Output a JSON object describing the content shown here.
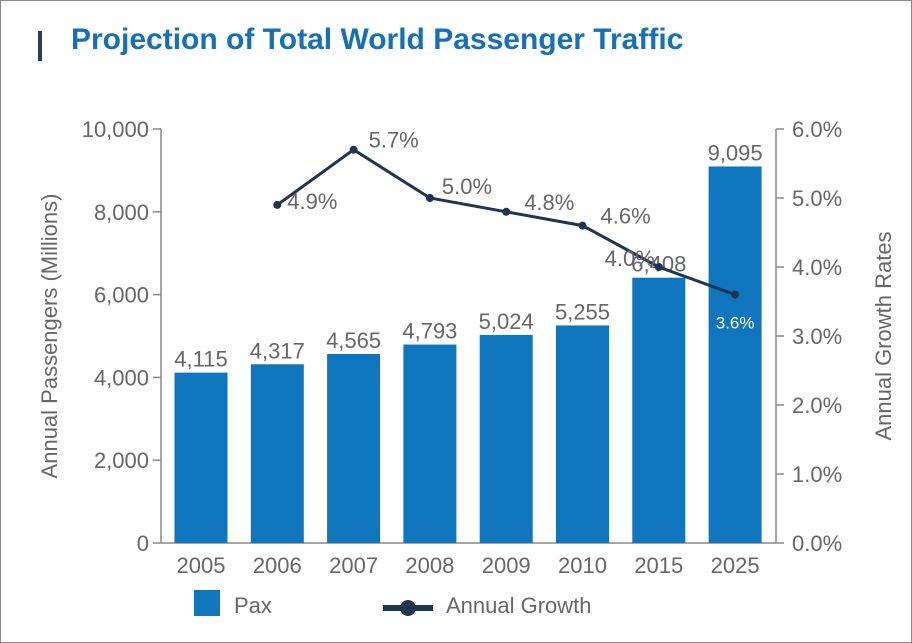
{
  "title": "Projection of Total World Passenger Traffic",
  "colors": {
    "bar": "#0f75bc",
    "line": "#1f3550",
    "axis_text": "#666666",
    "title": "#1570b8",
    "label_on_bar": "#ffffff"
  },
  "chart_data": {
    "type": "bar",
    "categories": [
      "2005",
      "2006",
      "2007",
      "2008",
      "2009",
      "2010",
      "2015",
      "2025"
    ],
    "series": [
      {
        "name": "Pax",
        "type": "bar",
        "axis": "left",
        "values": [
          4115,
          4317,
          4565,
          4793,
          5024,
          5255,
          6408,
          9095
        ],
        "labels": [
          "4,115",
          "4,317",
          "4,565",
          "4,793",
          "5,024",
          "5,255",
          "6,408",
          "9,095"
        ]
      },
      {
        "name": "Annual Growth",
        "type": "line",
        "axis": "right",
        "values": [
          null,
          4.9,
          5.7,
          5.0,
          4.8,
          4.6,
          4.0,
          3.6
        ],
        "labels": [
          "",
          "4.9%",
          "5.7%",
          "5.0%",
          "4.8%",
          "4.6%",
          "4.0%",
          "3.6%"
        ]
      }
    ],
    "ylabel": "Annual Passengers (Millions)",
    "y2label": "Annual Growth Rates",
    "ylim": [
      0,
      10000
    ],
    "y2lim": [
      0,
      6
    ],
    "yticks": [
      "0",
      "2,000",
      "4,000",
      "6,000",
      "8,000",
      "10,000"
    ],
    "y2ticks": [
      "0.0%",
      "1.0%",
      "2.0%",
      "3.0%",
      "4.0%",
      "5.0%",
      "6.0%"
    ],
    "legend_position": "bottom-left",
    "grid": false
  }
}
